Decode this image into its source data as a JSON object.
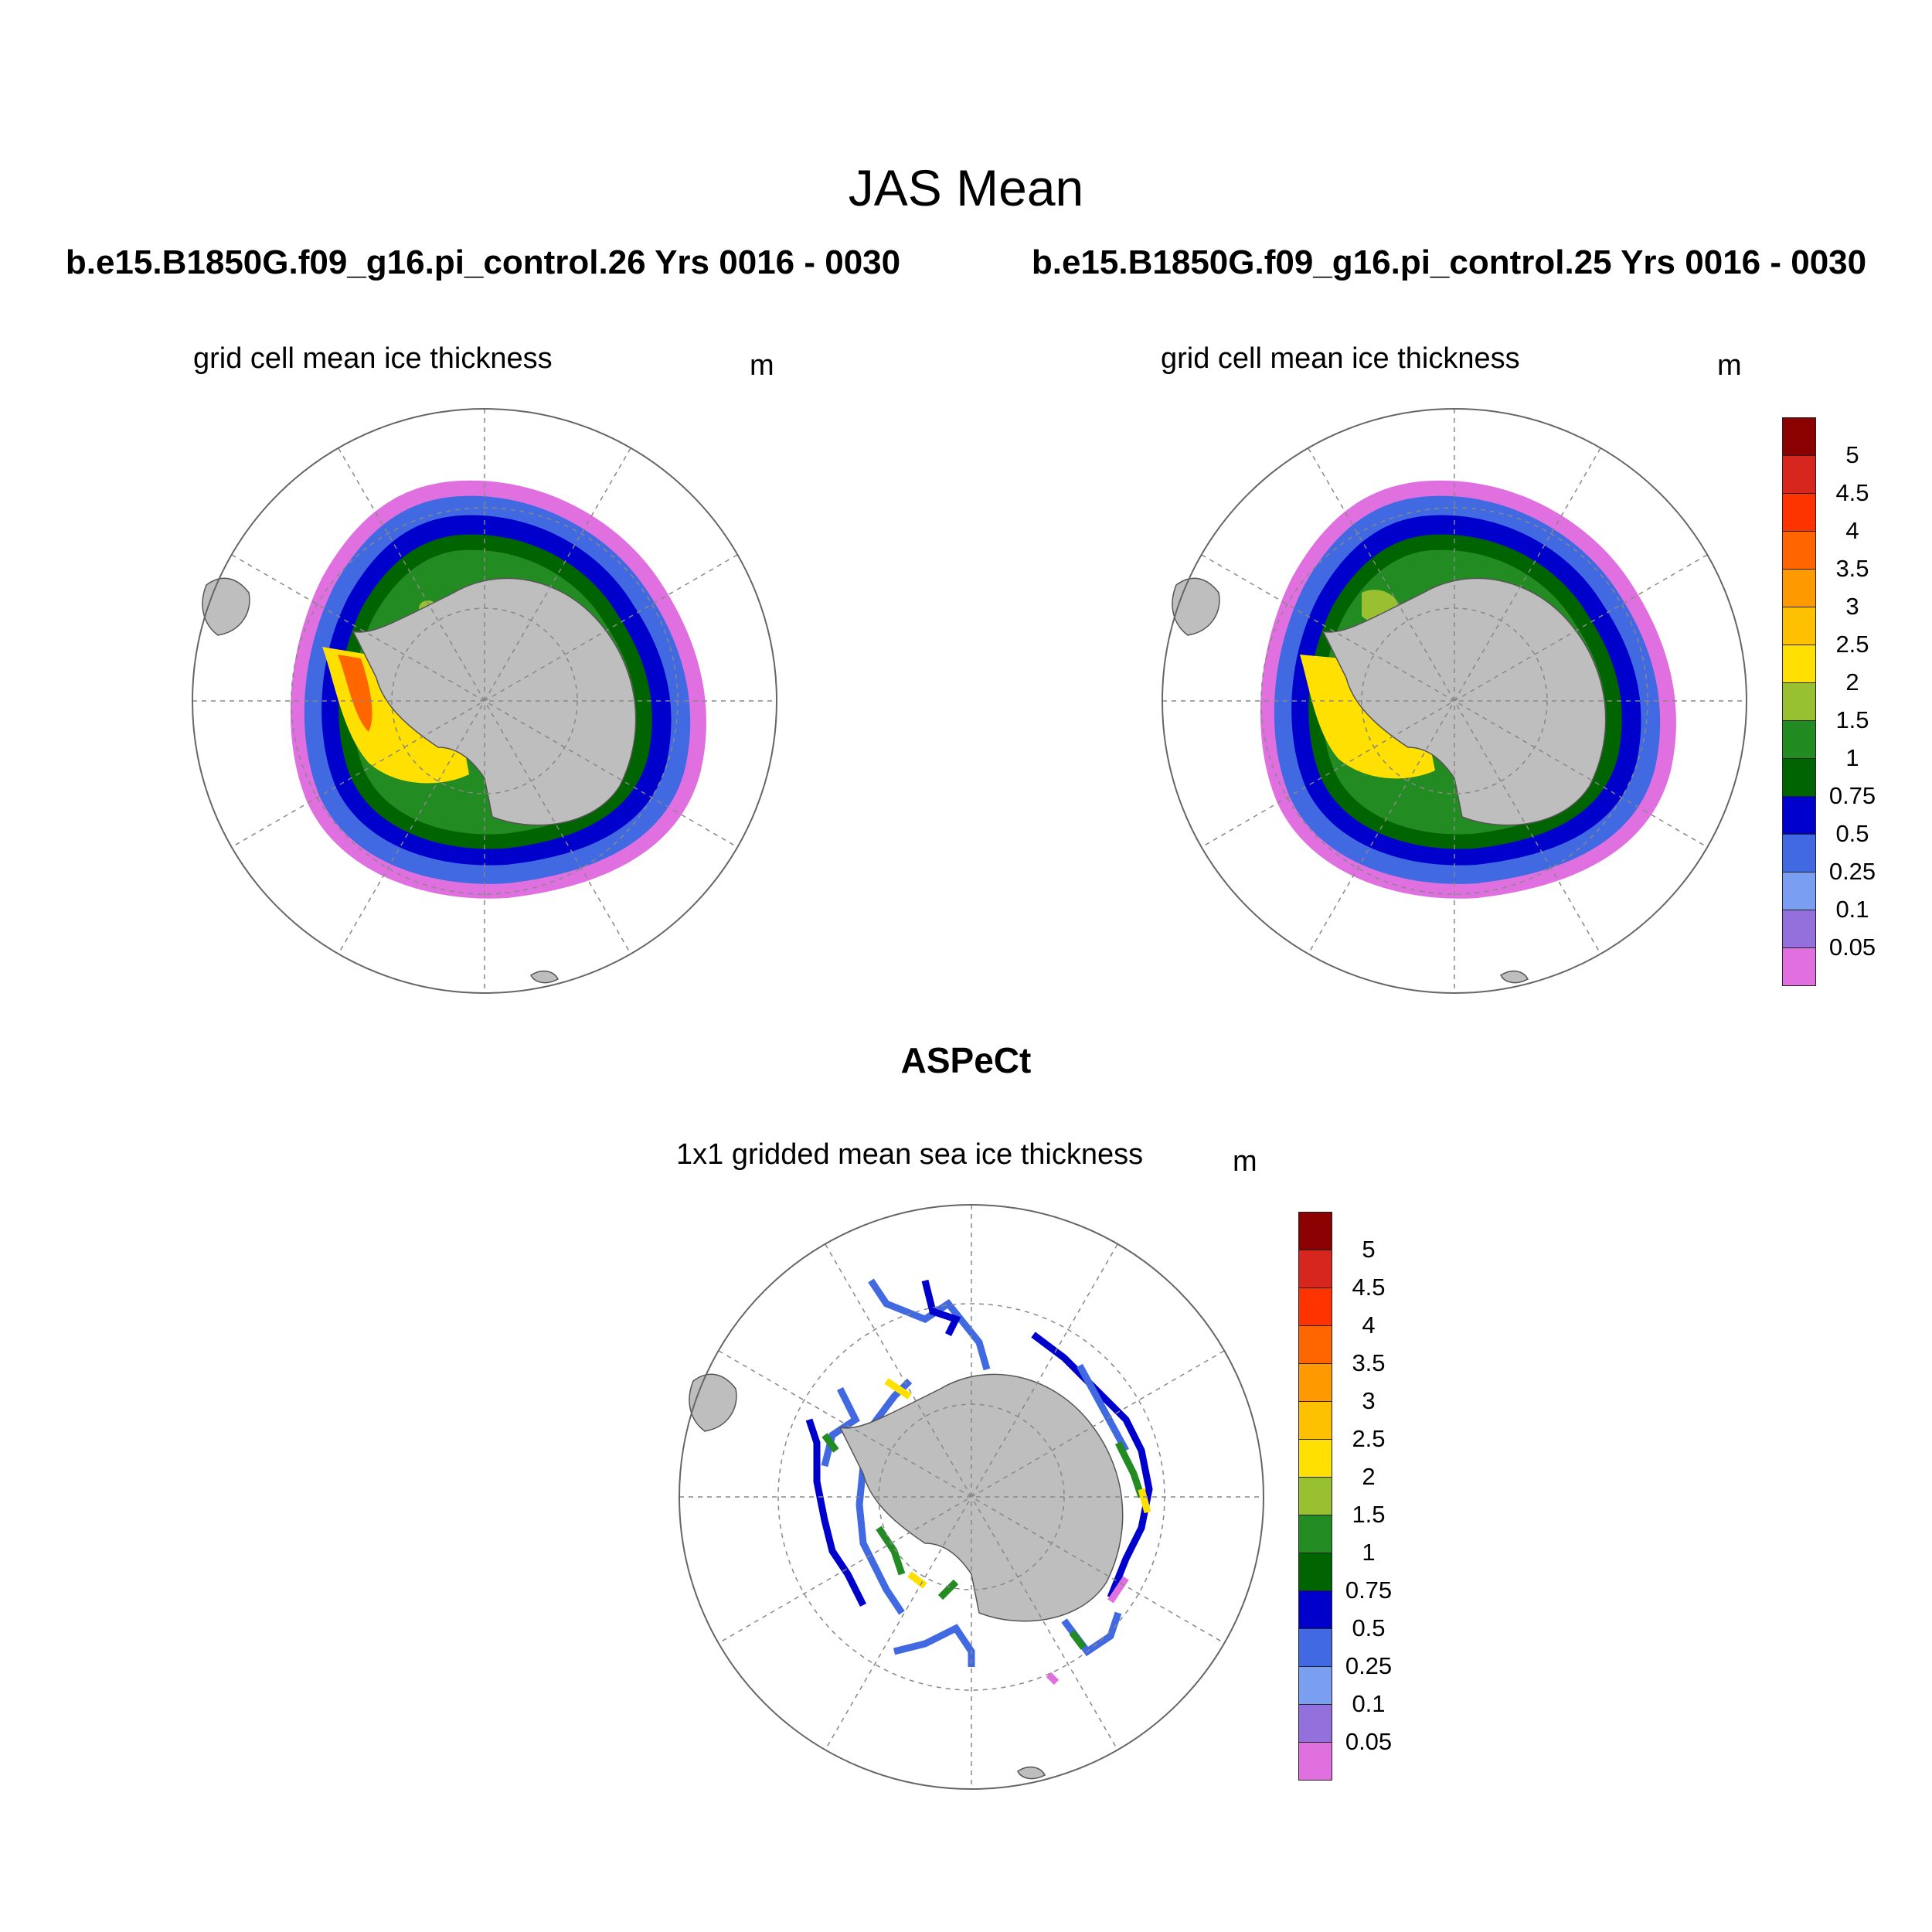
{
  "title": "JAS Mean",
  "panels": [
    {
      "case": "b.e15.B1850G.f09_g16.pi_control.26  Yrs 0016 - 0030",
      "variable": "grid cell mean ice thickness",
      "units": "m"
    },
    {
      "case": "b.e15.B1850G.f09_g16.pi_control.25  Yrs 0016 - 0030",
      "variable": "grid cell mean ice thickness",
      "units": "m"
    },
    {
      "case": "ASPeCt",
      "variable": "1x1 gridded mean sea ice thickness",
      "units": "m"
    }
  ],
  "colorbar": {
    "labels": [
      "5",
      "4.5",
      "4",
      "3.5",
      "3",
      "2.5",
      "2",
      "1.5",
      "1",
      "0.75",
      "0.5",
      "0.25",
      "0.1",
      "0.05"
    ],
    "colors": [
      "#8b0000",
      "#d7261e",
      "#ff3300",
      "#ff6600",
      "#ff9900",
      "#ffc000",
      "#ffe000",
      "#99c031",
      "#228b22",
      "#006400",
      "#0000cd",
      "#4169e1",
      "#7a9ff0",
      "#9370db",
      "#e070e0"
    ]
  },
  "colors": {
    "land": "#bebebe",
    "land_outline": "#555555",
    "grid": "#888888"
  }
}
